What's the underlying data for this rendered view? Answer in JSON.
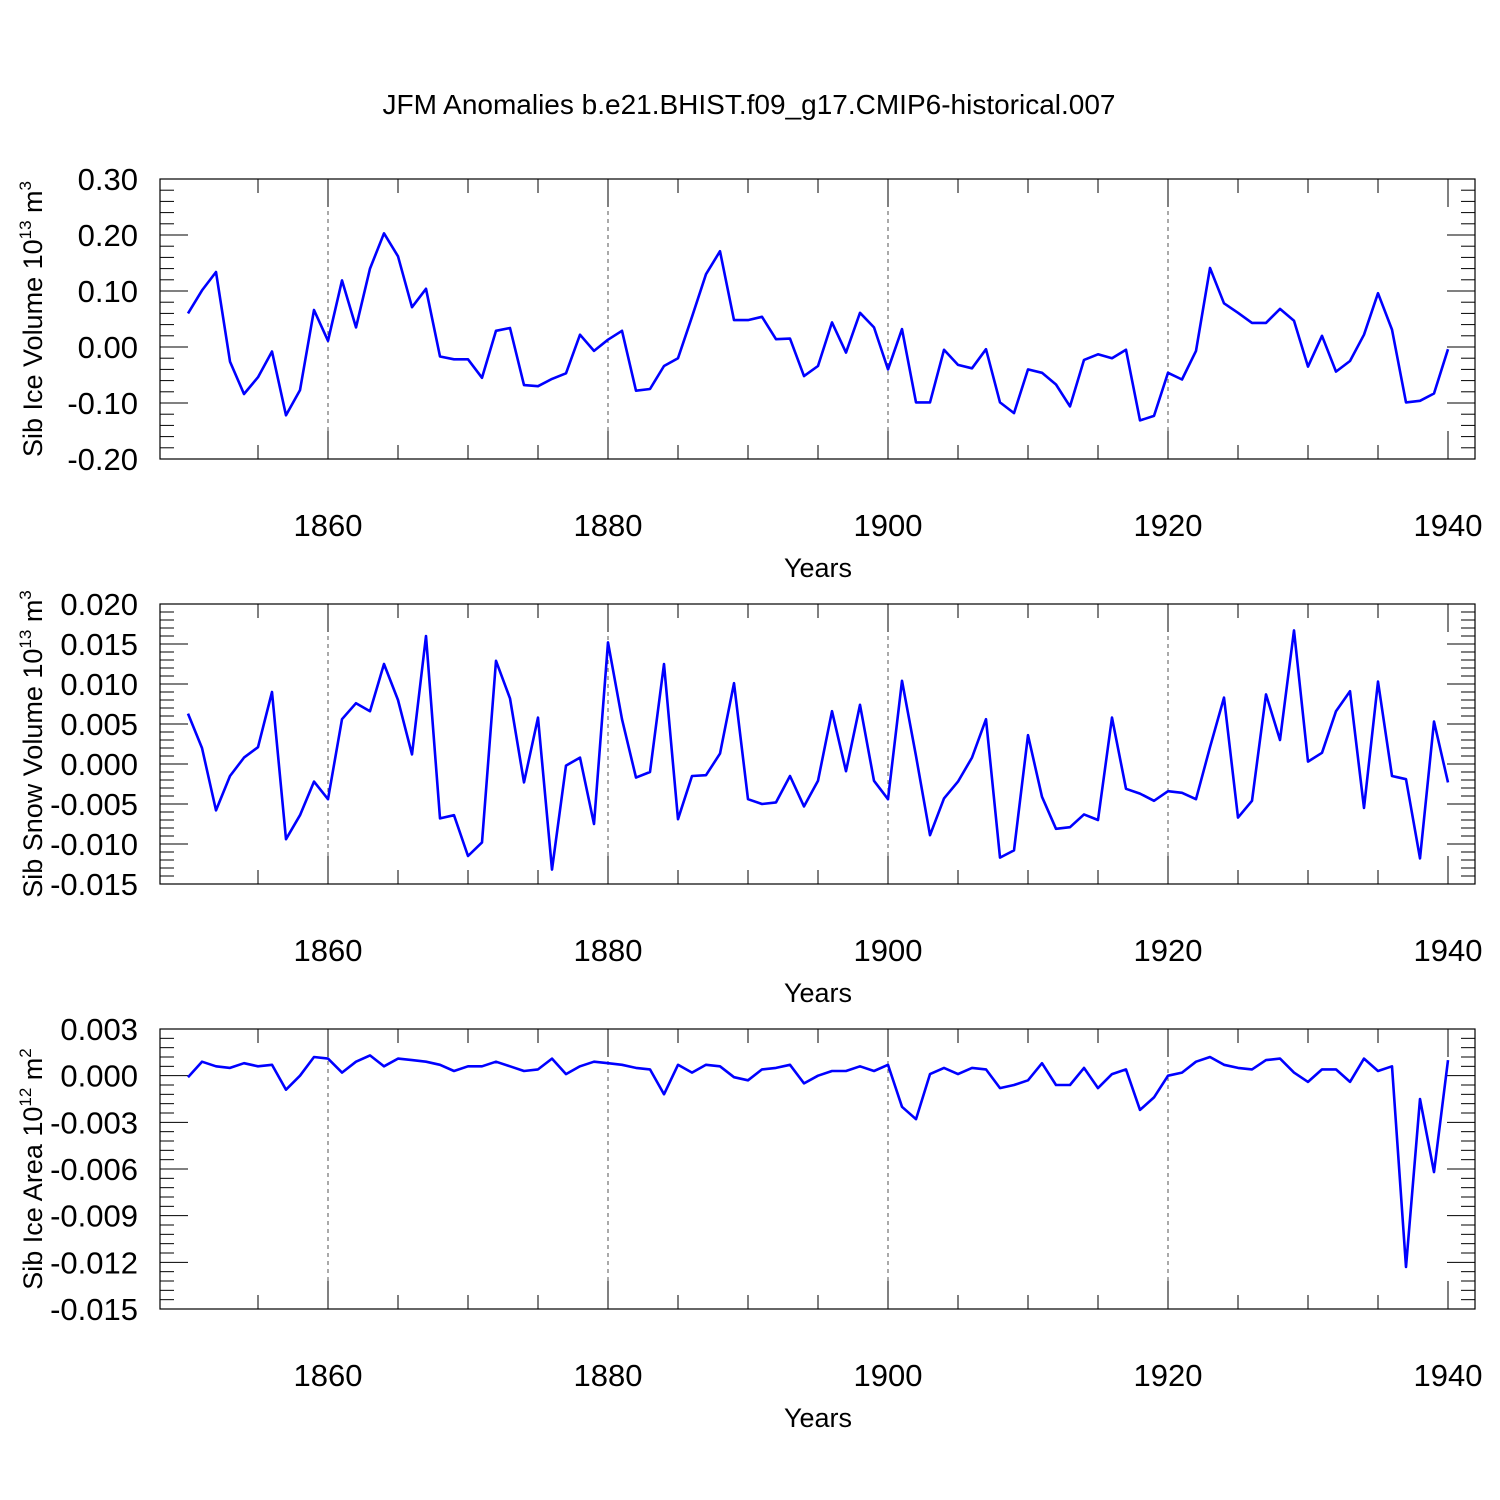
{
  "title": "JFM Anomalies b.e21.BHIST.f09_g17.CMIP6-historical.007",
  "colors": {
    "line": "#0000ff",
    "axis": "#000000",
    "grid": "#555555"
  },
  "chart_data": [
    {
      "type": "line",
      "title": "JFM Anomalies b.e21.BHIST.f09_g17.CMIP6-historical.007",
      "xlabel": "Years",
      "ylabel": "Sib Ice Volume 10",
      "ylabel_sup": "13",
      "ylabel_unit": "m",
      "ylabel_unit_sup": "3",
      "xlim": [
        1850,
        1940
      ],
      "ylim": [
        -0.2,
        0.3
      ],
      "xticks": [
        1860,
        1880,
        1900,
        1920,
        1940
      ],
      "yticks": [
        -0.2,
        -0.1,
        0.0,
        0.1,
        0.2,
        0.3
      ],
      "ytick_labels": [
        "-0.20",
        "-0.10",
        "0.00",
        "0.10",
        "0.20",
        "0.30"
      ],
      "grid": "vertical dashed at major x ticks",
      "x_start": 1850,
      "series": [
        {
          "name": "Sib Ice Volume",
          "values": [
            0.06,
            0.101,
            0.134,
            -0.026,
            -0.084,
            -0.054,
            -0.008,
            -0.122,
            -0.077,
            0.066,
            0.011,
            0.119,
            0.035,
            0.14,
            0.203,
            0.162,
            0.071,
            0.104,
            -0.017,
            -0.022,
            -0.022,
            -0.055,
            0.029,
            0.034,
            -0.068,
            -0.07,
            -0.057,
            -0.047,
            0.022,
            -0.007,
            0.013,
            0.029,
            -0.078,
            -0.075,
            -0.034,
            -0.02,
            0.054,
            0.13,
            0.171,
            0.048,
            0.048,
            0.054,
            0.014,
            0.015,
            -0.052,
            -0.034,
            0.044,
            -0.01,
            0.061,
            0.035,
            -0.04,
            0.032,
            -0.099,
            -0.099,
            -0.005,
            -0.032,
            -0.038,
            -0.004,
            -0.099,
            -0.118,
            -0.04,
            -0.046,
            -0.067,
            -0.106,
            -0.023,
            -0.013,
            -0.02,
            -0.005,
            -0.131,
            -0.123,
            -0.046,
            -0.058,
            -0.007,
            0.141,
            0.078,
            0.061,
            0.043,
            0.043,
            0.068,
            0.047,
            -0.035,
            0.02,
            -0.044,
            -0.025,
            0.022,
            0.096,
            0.031,
            -0.099,
            -0.096,
            -0.083,
            -0.004
          ]
        }
      ]
    },
    {
      "type": "line",
      "xlabel": "Years",
      "ylabel": "Sib Snow Volume 10",
      "ylabel_sup": "13",
      "ylabel_unit": "m",
      "ylabel_unit_sup": "3",
      "xlim": [
        1850,
        1940
      ],
      "ylim": [
        -0.015,
        0.02
      ],
      "xticks": [
        1860,
        1880,
        1900,
        1920,
        1940
      ],
      "yticks": [
        -0.015,
        -0.01,
        -0.005,
        0.0,
        0.005,
        0.01,
        0.015,
        0.02
      ],
      "ytick_labels": [
        "-0.015",
        "-0.010",
        "-0.005",
        "0.000",
        "0.005",
        "0.010",
        "0.015",
        "0.020"
      ],
      "grid": "vertical dashed at major x ticks",
      "x_start": 1850,
      "series": [
        {
          "name": "Sib Snow Volume",
          "values": [
            0.0063,
            0.002,
            -0.0058,
            -0.0015,
            0.0008,
            0.0021,
            0.009,
            -0.0094,
            -0.0064,
            -0.0022,
            -0.0044,
            0.0056,
            0.0076,
            0.0066,
            0.0125,
            0.008,
            0.0012,
            0.016,
            -0.0068,
            -0.0064,
            -0.0115,
            -0.0098,
            0.0129,
            0.0082,
            -0.0023,
            0.0058,
            -0.0132,
            -0.0002,
            0.0008,
            -0.0075,
            0.0152,
            0.0056,
            -0.0017,
            -0.001,
            0.0125,
            -0.0069,
            -0.0015,
            -0.0014,
            0.0013,
            0.0101,
            -0.0044,
            -0.005,
            -0.0048,
            -0.0015,
            -0.0053,
            -0.0021,
            0.0066,
            -0.0009,
            0.0074,
            -0.0021,
            -0.0044,
            0.0104,
            0.001,
            -0.0089,
            -0.0043,
            -0.0022,
            0.0008,
            0.0056,
            -0.0117,
            -0.0108,
            0.0036,
            -0.0041,
            -0.0081,
            -0.0079,
            -0.0063,
            -0.007,
            0.0058,
            -0.0031,
            -0.0037,
            -0.0046,
            -0.0034,
            -0.0036,
            -0.0044,
            0.0021,
            0.0083,
            -0.0067,
            -0.0046,
            0.0087,
            0.003,
            0.0167,
            0.0003,
            0.0014,
            0.0066,
            0.0091,
            -0.0055,
            0.0103,
            -0.0015,
            -0.0019,
            -0.0118,
            0.0053,
            -0.0023
          ]
        }
      ]
    },
    {
      "type": "line",
      "xlabel": "Years",
      "ylabel": "Sib Ice Area 10",
      "ylabel_sup": "12",
      "ylabel_unit": "m",
      "ylabel_unit_sup": "2",
      "xlim": [
        1850,
        1940
      ],
      "ylim": [
        -0.015,
        0.003
      ],
      "xticks": [
        1860,
        1880,
        1900,
        1920,
        1940
      ],
      "yticks": [
        -0.015,
        -0.012,
        -0.009,
        -0.006,
        -0.003,
        0.0,
        0.003
      ],
      "ytick_labels": [
        "-0.015",
        "-0.012",
        "-0.009",
        "-0.006",
        "-0.003",
        "0.000",
        "0.003"
      ],
      "grid": "vertical dashed at major x ticks",
      "x_start": 1850,
      "series": [
        {
          "name": "Sib Ice Area",
          "values": [
            -0.0001,
            0.0009,
            0.0006,
            0.0005,
            0.0008,
            0.0006,
            0.0007,
            -0.0009,
            0.0,
            0.0012,
            0.0011,
            0.0002,
            0.0009,
            0.0013,
            0.0006,
            0.0011,
            0.001,
            0.0009,
            0.0007,
            0.0003,
            0.0006,
            0.0006,
            0.0009,
            0.0006,
            0.0003,
            0.0004,
            0.0011,
            0.0001,
            0.0006,
            0.0009,
            0.0008,
            0.0007,
            0.0005,
            0.0004,
            -0.0012,
            0.0007,
            0.0002,
            0.0007,
            0.0006,
            -0.0001,
            -0.0003,
            0.0004,
            0.0005,
            0.0007,
            -0.0005,
            0.0,
            0.0003,
            0.0003,
            0.0006,
            0.0003,
            0.0007,
            -0.002,
            -0.0028,
            0.0001,
            0.0005,
            0.0001,
            0.0005,
            0.0004,
            -0.0008,
            -0.0006,
            -0.0003,
            0.0008,
            -0.0006,
            -0.0006,
            0.0005,
            -0.0008,
            0.0001,
            0.0004,
            -0.0022,
            -0.0014,
            0.0,
            0.0002,
            0.0009,
            0.0012,
            0.0007,
            0.0005,
            0.0004,
            0.001,
            0.0011,
            0.0002,
            -0.0004,
            0.0004,
            0.0004,
            -0.0004,
            0.0011,
            0.0003,
            0.0006,
            -0.0123,
            -0.0015,
            -0.0062,
            0.001
          ]
        }
      ]
    }
  ]
}
